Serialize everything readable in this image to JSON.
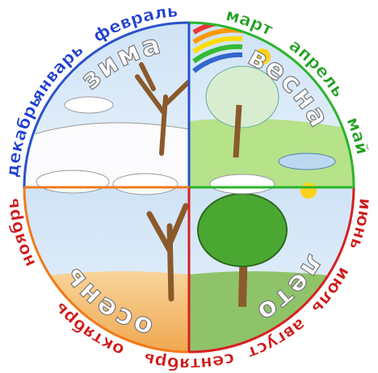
{
  "seasons": [
    "зима",
    "весна",
    "лето",
    "осень"
  ],
  "months": [
    "декабрь",
    "январь",
    "февраль",
    "март",
    "апрель",
    "май",
    "июнь",
    "июль",
    "август",
    "сентябрь",
    "октябрь",
    "ноябрь"
  ]
}
